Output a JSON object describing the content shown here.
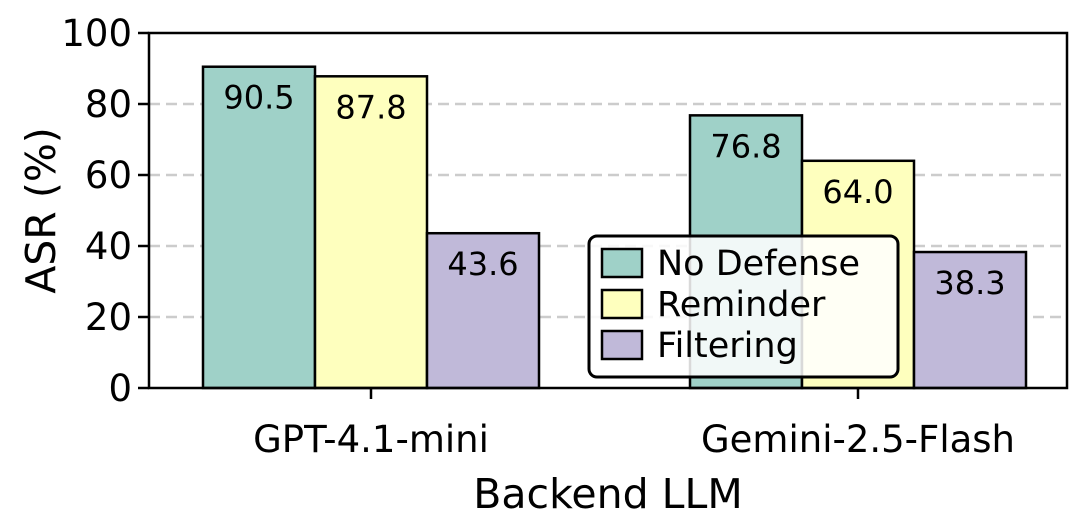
{
  "chart_data": {
    "type": "bar",
    "title": "",
    "xlabel": "Backend LLM",
    "ylabel": "ASR (%)",
    "ylim": [
      0,
      100
    ],
    "yticks": [
      0,
      20,
      40,
      60,
      80,
      100
    ],
    "grid": "y-dashed",
    "legend_position": "center-right",
    "categories": [
      "GPT-4.1-mini",
      "Gemini-2.5-Flash"
    ],
    "series": [
      {
        "name": "No Defense",
        "color": "#9fd1c8",
        "values": [
          90.5,
          76.8
        ],
        "labels": [
          "90.5",
          "76.8"
        ]
      },
      {
        "name": "Reminder",
        "color": "#feffbe",
        "values": [
          87.8,
          64.0
        ],
        "labels": [
          "87.8",
          "64.0"
        ]
      },
      {
        "name": "Filtering",
        "color": "#c0b9d9",
        "values": [
          43.6,
          38.3
        ],
        "labels": [
          "43.6",
          "38.3"
        ]
      }
    ]
  }
}
